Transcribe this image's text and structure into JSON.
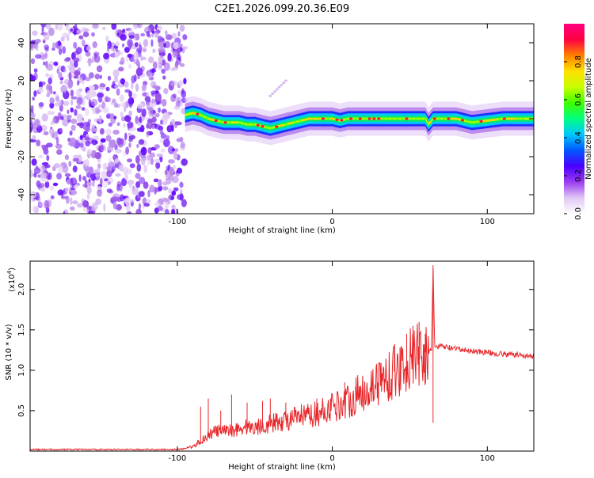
{
  "title": "C2E1.2026.099.20.36.E09",
  "chart_data": [
    {
      "type": "heatmap",
      "title": "C2E1.2026.099.20.36.E09",
      "xlabel": "Height of straight line (km)",
      "ylabel": "Frequency (Hz)",
      "xlim": [
        -195,
        130
      ],
      "ylim": [
        -50,
        50
      ],
      "xticks": [
        -100,
        0,
        100
      ],
      "xtick_labels": [
        "-100",
        "0",
        "100"
      ],
      "yticks": [
        -40,
        -20,
        0,
        20,
        40
      ],
      "ytick_labels": [
        "-40",
        "-20",
        "0",
        "20",
        "40"
      ],
      "noise_region_x": [
        -195,
        -95
      ],
      "signal_start_x": -95,
      "ridge": {
        "x": [
          -95,
          -90,
          -85,
          -80,
          -75,
          -70,
          -65,
          -60,
          -55,
          -50,
          -45,
          -40,
          -35,
          -30,
          -25,
          -20,
          -15,
          -10,
          -5,
          0,
          5,
          10,
          20,
          30,
          40,
          50,
          60,
          62,
          65,
          70,
          80,
          90,
          100,
          110,
          120,
          130
        ],
        "freq": [
          2,
          3,
          2,
          0,
          -1,
          -2,
          -2,
          -2,
          -3,
          -3,
          -4,
          -5,
          -4,
          -3,
          -2,
          -1,
          0,
          0,
          0,
          0,
          -1,
          0,
          0,
          0,
          0,
          0,
          0,
          -3,
          0,
          0,
          0,
          -2,
          -1,
          0,
          0,
          0
        ]
      },
      "faint_streak": {
        "x": [
          -40,
          -30
        ],
        "freq": [
          12,
          20
        ]
      },
      "colorbar": {
        "label": "Normalized spectral amplitude",
        "range": [
          0.0,
          1.0
        ],
        "ticks": [
          0.0,
          0.2,
          0.4,
          0.6,
          0.8
        ],
        "tick_labels": [
          "0.0",
          "0.2",
          "0.4",
          "0.6",
          "0.8"
        ],
        "colors": [
          "#ffffff",
          "#e0c8f4",
          "#9a3cf0",
          "#4a00ff",
          "#0058ff",
          "#00c8ff",
          "#00ff80",
          "#40ff00",
          "#c8ff00",
          "#ffe000",
          "#ff8000",
          "#ff0040",
          "#ff0080"
        ]
      }
    },
    {
      "type": "line",
      "xlabel": "Height of straight line (km)",
      "ylabel": "SNR (10 * v/v)",
      "multiplier_label": "(x10",
      "multiplier_exp": "4",
      "xlim": [
        -195,
        130
      ],
      "ylim": [
        0,
        2.35
      ],
      "xticks": [
        -100,
        0,
        100
      ],
      "xtick_labels": [
        "-100",
        "0",
        "100"
      ],
      "yticks": [
        0.5,
        1.0,
        1.5,
        2.0
      ],
      "ytick_labels": [
        "0.5",
        "1.0",
        "1.5",
        "2.0"
      ],
      "color": "#e8262a",
      "series": {
        "name": "SNR",
        "x": [
          -195,
          -150,
          -110,
          -100,
          -95,
          -90,
          -85,
          -80,
          -75,
          -70,
          -65,
          -60,
          -55,
          -50,
          -45,
          -40,
          -35,
          -30,
          -25,
          -20,
          -15,
          -10,
          -5,
          0,
          5,
          10,
          15,
          20,
          25,
          30,
          35,
          40,
          45,
          50,
          55,
          60,
          62,
          64,
          65,
          66,
          68,
          70,
          75,
          80,
          90,
          100,
          110,
          120,
          130
        ],
        "y": [
          0.02,
          0.02,
          0.02,
          0.02,
          0.03,
          0.06,
          0.12,
          0.2,
          0.25,
          0.24,
          0.26,
          0.28,
          0.3,
          0.29,
          0.32,
          0.34,
          0.36,
          0.38,
          0.4,
          0.42,
          0.44,
          0.46,
          0.5,
          0.55,
          0.58,
          0.62,
          0.68,
          0.74,
          0.8,
          0.86,
          0.92,
          0.98,
          1.05,
          1.12,
          1.18,
          1.22,
          1.2,
          1.25,
          2.3,
          1.3,
          1.28,
          1.3,
          1.28,
          1.26,
          1.24,
          1.22,
          1.2,
          1.19,
          1.17
        ]
      },
      "spikes": {
        "x": [
          -85,
          -80,
          -72,
          -65,
          -55,
          -45,
          -40,
          -30,
          -20,
          -10,
          8,
          15,
          25,
          40,
          48,
          52,
          56,
          60,
          65
        ],
        "y": [
          0.55,
          0.65,
          0.5,
          0.7,
          0.6,
          0.62,
          0.65,
          0.6,
          0.58,
          0.65,
          0.85,
          0.8,
          0.9,
          1.25,
          1.45,
          1.55,
          1.6,
          1.45,
          0.35
        ]
      }
    }
  ]
}
